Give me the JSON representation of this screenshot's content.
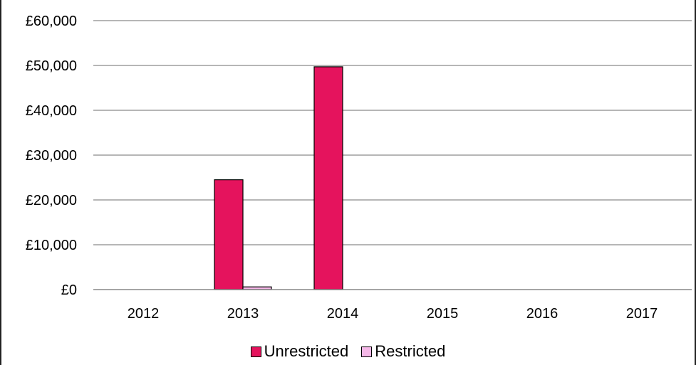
{
  "chart_data": {
    "type": "bar",
    "categories": [
      "2012",
      "2013",
      "2014",
      "2015",
      "2016",
      "2017"
    ],
    "series": [
      {
        "name": "Unrestricted",
        "color": "#e5135d",
        "values": [
          0,
          24500,
          49700,
          0,
          0,
          0
        ]
      },
      {
        "name": "Restricted",
        "color": "#f6b8e8",
        "values": [
          0,
          600,
          0,
          0,
          0,
          0
        ]
      }
    ],
    "title": "",
    "xlabel": "",
    "ylabel": "",
    "ylim": [
      0,
      60000
    ],
    "yticks": [
      "£0",
      "£10,000",
      "£20,000",
      "£30,000",
      "£40,000",
      "£50,000",
      "£60,000"
    ],
    "ytick_values": [
      0,
      10000,
      20000,
      30000,
      40000,
      50000,
      60000
    ],
    "grid": true,
    "legend_position": "bottom"
  }
}
